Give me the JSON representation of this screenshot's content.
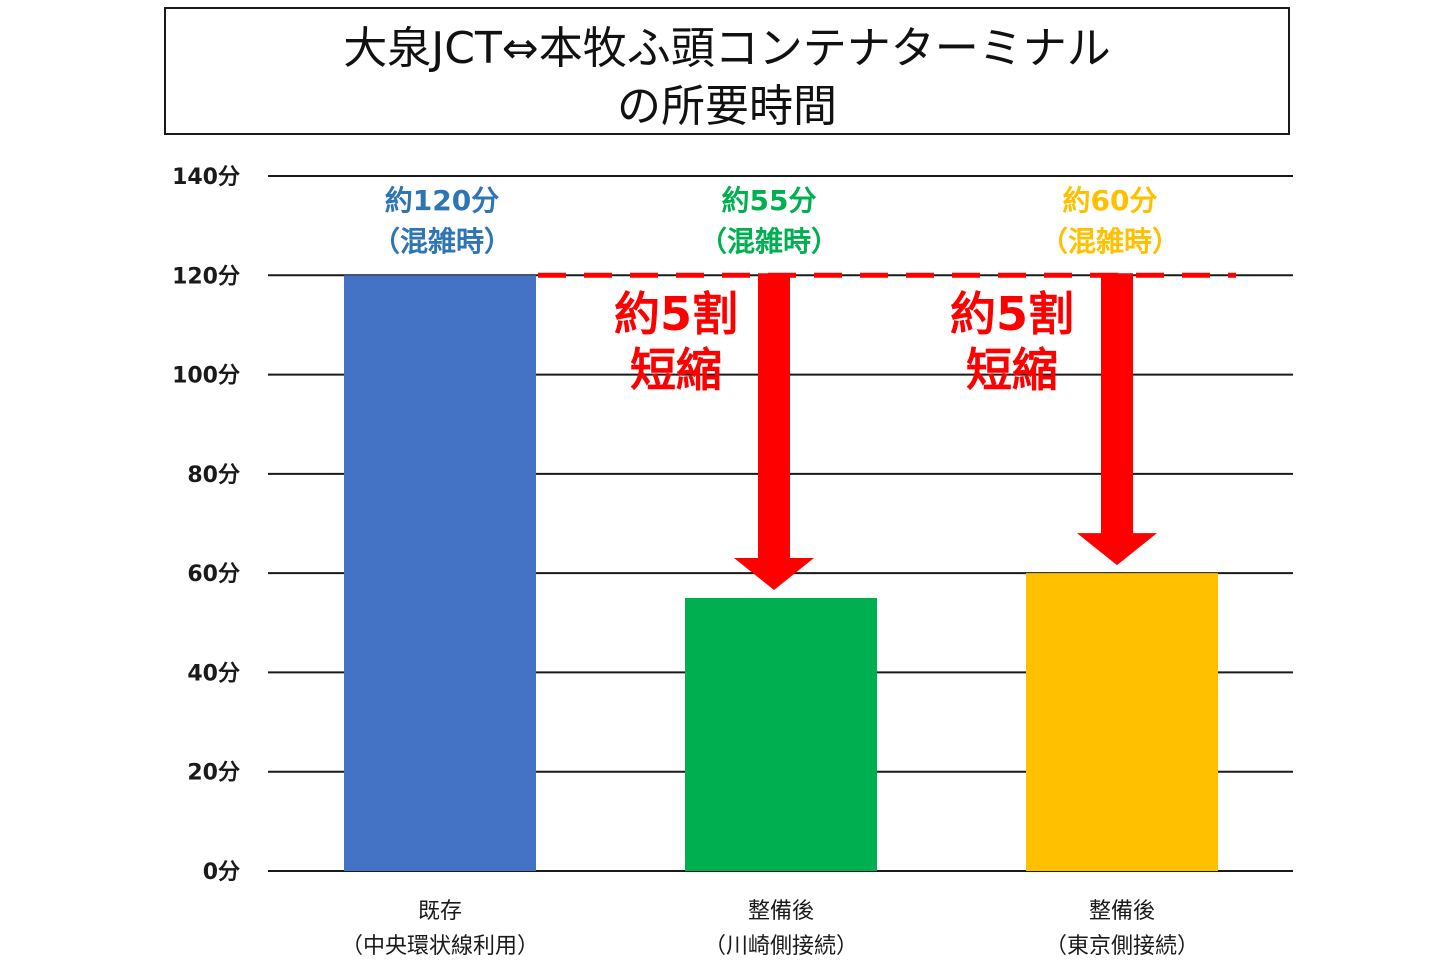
{
  "chart_data": {
    "type": "bar",
    "title": "大泉JCT⇔本牧ふ頭コンテナターミナル",
    "title_line2": "の所要時間",
    "categories": [
      {
        "line1": "既存",
        "line2": "（中央環状線利用）"
      },
      {
        "line1": "整備後",
        "line2": "（川崎側接続）"
      },
      {
        "line1": "整備後",
        "line2": "（東京側接続）"
      }
    ],
    "values": [
      120,
      55,
      60
    ],
    "colors": [
      "#4472c4",
      "#00b050",
      "#ffc000"
    ],
    "value_labels": [
      {
        "line1": "約120分",
        "line2": "（混雑時）",
        "color": "#2e75b6"
      },
      {
        "line1": "約55分",
        "line2": "（混雑時）",
        "color": "#00b050"
      },
      {
        "line1": "約60分",
        "line2": "（混雑時）",
        "color": "#ffc000"
      }
    ],
    "ylim": [
      0,
      140
    ],
    "yticks": [
      "0分",
      "20分",
      "40分",
      "60分",
      "80分",
      "100分",
      "120分",
      "140分"
    ],
    "grid": true,
    "reference_line": {
      "value": 120,
      "color": "#ff0000",
      "style": "dashed"
    },
    "annotations": [
      {
        "line1": "約5割",
        "line2": "短縮",
        "from": 120,
        "to": 55,
        "color": "#ff0000"
      },
      {
        "line1": "約5割",
        "line2": "短縮",
        "from": 120,
        "to": 60,
        "color": "#ff0000"
      }
    ]
  }
}
